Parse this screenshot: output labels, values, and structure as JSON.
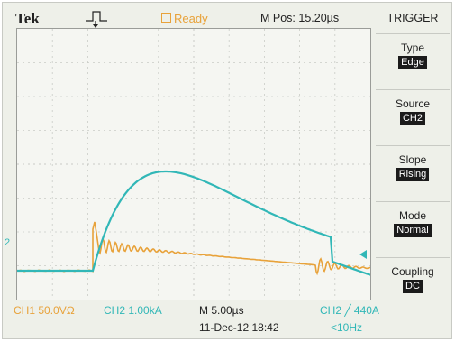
{
  "header": {
    "brand": "Tek",
    "status": "Ready",
    "mpos": "M Pos: 15.20µs"
  },
  "menu": {
    "title": "TRIGGER",
    "items": [
      {
        "label": "Type",
        "value": "Edge"
      },
      {
        "label": "Source",
        "value": "CH2"
      },
      {
        "label": "Slope",
        "value": "Rising"
      },
      {
        "label": "Mode",
        "value": "Normal"
      },
      {
        "label": "Coupling",
        "value": "DC"
      }
    ]
  },
  "footer": {
    "ch1": "CH1  50.0VΩ",
    "ch2": "CH2  1.00kA",
    "timebase": "M 5.00µs",
    "trigger_readout": "CH2 ╱ 440A",
    "datetime": "11-Dec-12 18:42",
    "frequency": "<10Hz"
  },
  "markers": {
    "ch2_ground": "2"
  },
  "colors": {
    "ch1": "#e8a23a",
    "ch2": "#31b7b7",
    "status": "#e8a23a"
  }
}
